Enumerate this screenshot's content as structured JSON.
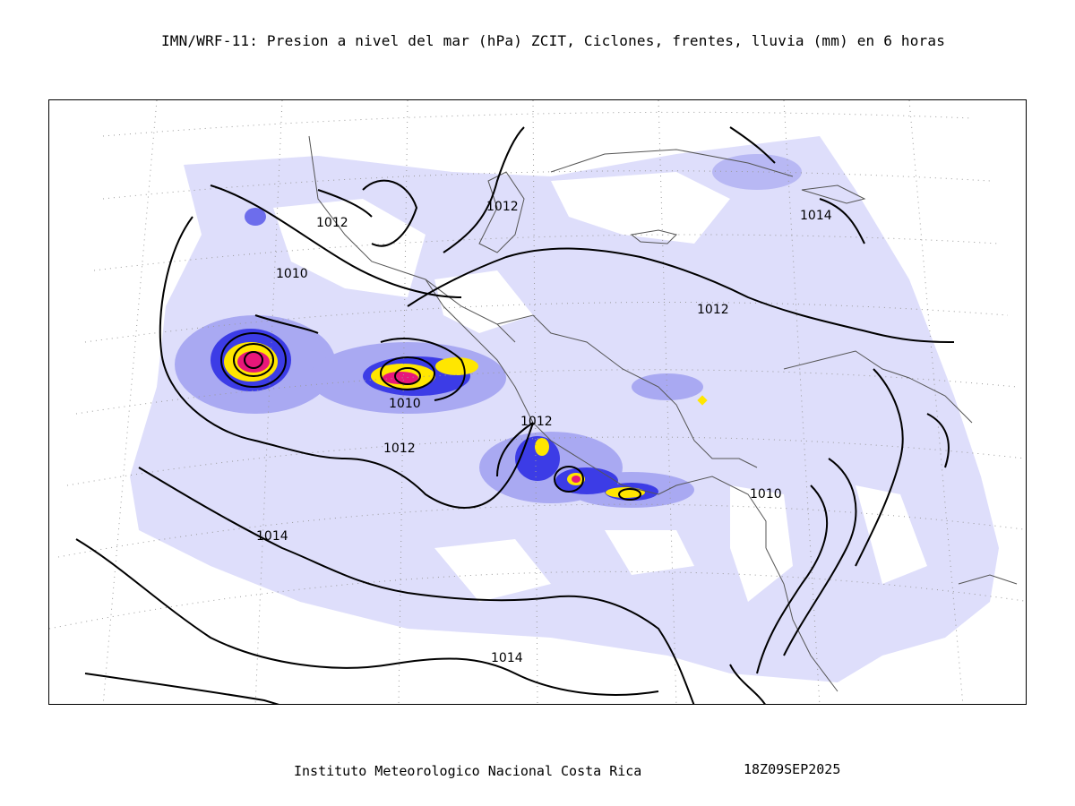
{
  "title": "IMN/WRF-11: Presion a nivel del mar (hPa) ZCIT, Ciclones, frentes, lluvia (mm) en 6 horas",
  "footer": {
    "institution": "Instituto Meteorologico Nacional Costa Rica",
    "datetime": "18Z09SEP2025"
  },
  "isobar_labels": [
    "1012",
    "1012",
    "1014",
    "1010",
    "1012",
    "1010",
    "1012",
    "1012",
    "1010",
    "1014",
    "1014"
  ],
  "colors": {
    "rain_light": "#dcdcfb",
    "rain_mid": "#a9a9f2",
    "rain_heavy": "#3c3ce6",
    "rain_max_yellow": "#ffe600",
    "rain_max_magenta": "#e8177a",
    "coast": "#555555",
    "grid": "#9a9a9a"
  }
}
